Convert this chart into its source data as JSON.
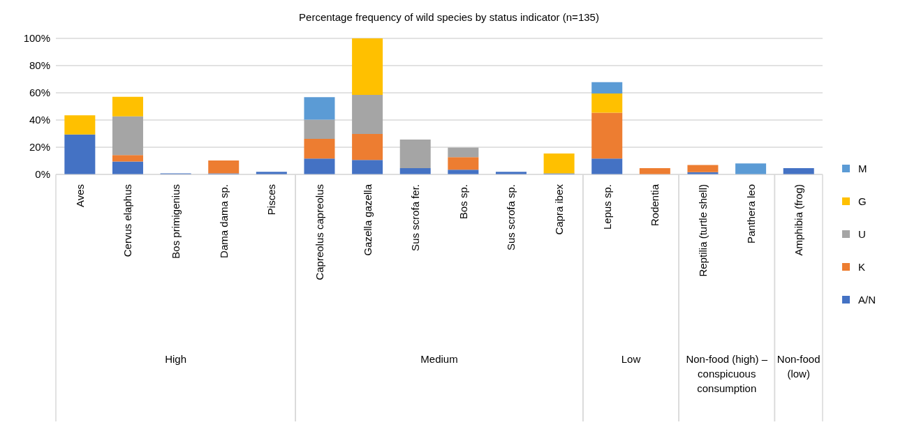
{
  "chart_data": {
    "type": "bar",
    "title": "Percentage frequency of wild species by status indicator (n=135)",
    "categories": [
      "Aves",
      "Cervus elaphus",
      "Bos primigenius",
      "Dama dama sp.",
      "Pisces",
      "Capreolus capreolus",
      "Gazella gazella",
      "Sus scrofa fer.",
      "Bos sp.",
      "Sus scrofa sp.",
      "Capra ibex",
      "Lepus sp.",
      "Rodentia",
      "Reptilia (turtle shell)",
      "Panthera leo",
      "Amphibia (frog)"
    ],
    "stacked": true,
    "series": [
      {
        "name": "A/N",
        "color": "#4472c4",
        "values": [
          29.3,
          9.5,
          0.8,
          0.8,
          1.9,
          11.7,
          10.7,
          4.6,
          3.4,
          1.9,
          0.8,
          11.7,
          null,
          1.7,
          null,
          4.6
        ]
      },
      {
        "name": "K",
        "color": "#ed7d31",
        "values": [
          null,
          4.7,
          null,
          9.4,
          null,
          14.4,
          19.1,
          null,
          9.3,
          null,
          null,
          33.7,
          4.6,
          5.2,
          null,
          null
        ]
      },
      {
        "name": "U",
        "color": "#a5a5a5",
        "values": [
          null,
          28.5,
          null,
          null,
          null,
          14.1,
          28.7,
          21.0,
          7.1,
          null,
          null,
          null,
          null,
          null,
          null,
          null
        ]
      },
      {
        "name": "G",
        "color": "#ffc000",
        "values": [
          14.1,
          14.3,
          null,
          null,
          null,
          null,
          41.5,
          null,
          null,
          null,
          14.6,
          14.1,
          null,
          null,
          null,
          null
        ]
      },
      {
        "name": "M",
        "color": "#5b9bd5",
        "values": [
          null,
          null,
          null,
          null,
          null,
          16.6,
          null,
          null,
          null,
          null,
          null,
          8.3,
          null,
          null,
          8.1,
          null
        ]
      }
    ],
    "ylim": [
      0,
      100
    ],
    "yticks": [
      {
        "value": 0,
        "label": "0%"
      },
      {
        "value": 20,
        "label": "20%"
      },
      {
        "value": 40,
        "label": "40%"
      },
      {
        "value": 60,
        "label": "60%"
      },
      {
        "value": 80,
        "label": "80%"
      },
      {
        "value": 100,
        "label": "100%"
      }
    ],
    "grid": "y",
    "legend": "right",
    "annotations": [
      "High",
      "Medium",
      "Low",
      "Non-food (high) – conspicuous consumption",
      "Non-food (low)"
    ]
  }
}
